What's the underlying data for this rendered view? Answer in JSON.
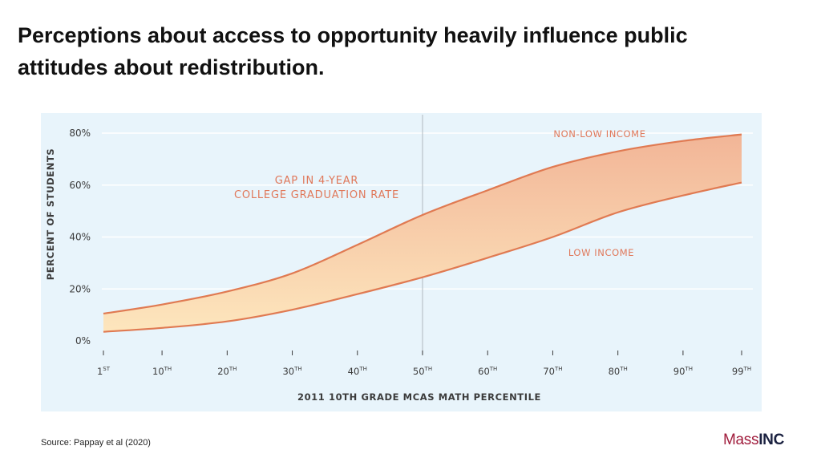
{
  "slide": {
    "title_line1": "Perceptions about access to opportunity heavily influence public",
    "title_line2": "attitudes about redistribution.",
    "source": "Source:  Pappay et al (2020)",
    "logo_mass": "Mass",
    "logo_inc": "INC"
  },
  "colors": {
    "panel_bg": "#e8f4fb",
    "line": "#e07a52",
    "label": "#e0785a",
    "fill_top": "#f2b597",
    "fill_bottom": "#fde6bd",
    "axis_text": "#3b3b3b",
    "grid": "#ffffff",
    "divider": "#b9c3c9"
  },
  "chart_data": {
    "type": "area",
    "title": "",
    "xlabel": "2011 10TH GRADE MCAS MATH PERCENTILE",
    "ylabel": "PERCENT OF STUDENTS",
    "x": [
      1,
      10,
      20,
      30,
      40,
      50,
      60,
      70,
      80,
      90,
      99
    ],
    "x_tick_labels": [
      {
        "num": "1",
        "sup": "ST"
      },
      {
        "num": "10",
        "sup": "TH"
      },
      {
        "num": "20",
        "sup": "TH"
      },
      {
        "num": "30",
        "sup": "TH"
      },
      {
        "num": "40",
        "sup": "TH"
      },
      {
        "num": "50",
        "sup": "TH"
      },
      {
        "num": "60",
        "sup": "TH"
      },
      {
        "num": "70",
        "sup": "TH"
      },
      {
        "num": "80",
        "sup": "TH"
      },
      {
        "num": "90",
        "sup": "TH"
      },
      {
        "num": "99",
        "sup": "TH"
      }
    ],
    "y_ticks": [
      0,
      20,
      40,
      60,
      80
    ],
    "y_tick_labels": [
      "0%",
      "20%",
      "40%",
      "60%",
      "80%"
    ],
    "ylim": [
      0,
      80
    ],
    "xlim": [
      1,
      99
    ],
    "series": [
      {
        "name": "NON-LOW INCOME",
        "values": [
          10.5,
          14,
          19,
          26,
          37,
          48.5,
          58,
          67,
          73,
          77,
          79.5
        ]
      },
      {
        "name": "LOW INCOME",
        "values": [
          3.5,
          5,
          7.5,
          12,
          18,
          24.5,
          32,
          40,
          49.5,
          56,
          61
        ]
      }
    ],
    "reference_line_x": 50,
    "annotations": {
      "gap_line1": "GAP IN 4-YEAR",
      "gap_line2": "COLLEGE GRADUATION RATE"
    }
  }
}
